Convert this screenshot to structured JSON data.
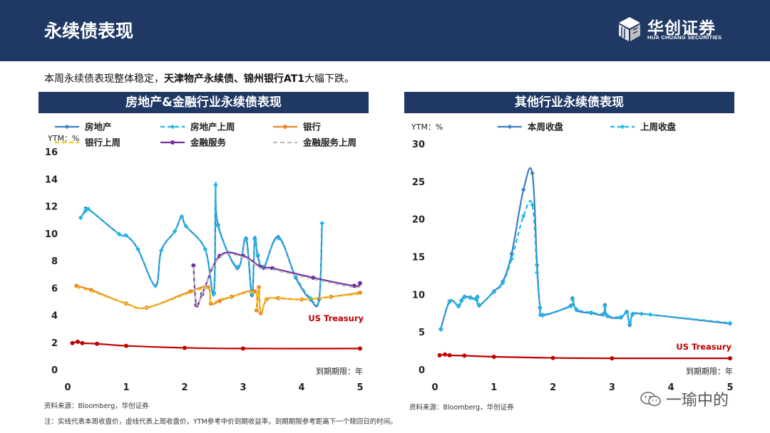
{
  "header": {
    "title": "永续债表现",
    "logo_main": "华创证券",
    "logo_sub": "HUA CHUANG SECURITIES"
  },
  "summary": {
    "prefix": "本周永续债表现整体稳定，",
    "bold": "天津物产永续债、锦州银行AT1",
    "suffix": "大幅下跌。"
  },
  "left_panel": {
    "title": "房地产&金融行业永续债表现",
    "source": "资料来源：Bloomberg，华创证券"
  },
  "right_panel": {
    "title": "其他行业永续债表现",
    "source": "资料来源：Bloomberg，华创证券"
  },
  "note": "注：实线代表本周收盘价，虚线代表上周收盘价，YTM参考中价到期收益率，到期期限参考距离下一个赎回日的时间。",
  "watermark": "一瑜中的",
  "colors": {
    "header": "#1f3864",
    "blue": "#3a7fc1",
    "cyan": "#22b8e6",
    "orange": "#e8892c",
    "yellow": "#f5c518",
    "purple": "#7030a0",
    "gray": "#bfbfbf",
    "red": "#c00000"
  },
  "chart_data": [
    {
      "type": "line",
      "ylabel": "YTM：%",
      "xlabel": "到期期限：年",
      "xlim": [
        0,
        5
      ],
      "ylim": [
        0,
        16
      ],
      "xticks": [
        0,
        1,
        2,
        3,
        4,
        5
      ],
      "yticks": [
        0,
        2,
        4,
        6,
        8,
        10,
        12,
        14,
        16
      ],
      "legend": "top",
      "annotation": "US Treasury",
      "series": [
        {
          "name": "房地产",
          "style": "solid",
          "marker": "diamond",
          "color": "#3a7fc1",
          "x": [
            0.22,
            0.3,
            0.35,
            0.88,
            1.0,
            1.2,
            1.5,
            1.6,
            1.83,
            1.95,
            2.02,
            2.35,
            2.5,
            2.53,
            2.57,
            2.9,
            3.05,
            3.15,
            3.2,
            3.25,
            3.35,
            3.6,
            3.9,
            4.15,
            4.3,
            4.35
          ],
          "y": [
            11.2,
            11.7,
            11.85,
            10.0,
            9.9,
            8.9,
            6.2,
            8.8,
            10.2,
            11.3,
            10.6,
            8.9,
            5.7,
            13.6,
            10.7,
            7.5,
            9.7,
            5.5,
            9.7,
            8.4,
            7.5,
            9.8,
            6.8,
            5.2,
            5.2,
            10.8
          ]
        },
        {
          "name": "房地产上周",
          "style": "dashed",
          "marker": "diamond",
          "color": "#22b8e6",
          "x": [
            0.22,
            0.3,
            0.35,
            0.88,
            1.0,
            1.2,
            1.5,
            1.6,
            1.83,
            1.95,
            2.02,
            2.35,
            2.5,
            2.53,
            2.57,
            2.9,
            3.05,
            3.15,
            3.2,
            3.25,
            3.35,
            3.6,
            3.9,
            4.15,
            4.3,
            4.35
          ],
          "y": [
            11.2,
            11.7,
            11.85,
            10.0,
            9.9,
            8.9,
            6.2,
            8.8,
            10.2,
            11.3,
            10.6,
            8.9,
            5.6,
            13.6,
            10.6,
            7.6,
            9.6,
            5.6,
            9.6,
            8.5,
            7.6,
            9.7,
            6.9,
            5.3,
            5.3,
            10.8
          ]
        },
        {
          "name": "银行",
          "style": "solid",
          "marker": "circle",
          "color": "#e8892c",
          "x": [
            0.15,
            0.4,
            1.0,
            1.35,
            2.1,
            2.4,
            2.45,
            2.6,
            2.8,
            3.2,
            3.23,
            3.27,
            3.3,
            3.4,
            3.6,
            4.0,
            4.5,
            5.0
          ],
          "y": [
            6.2,
            5.9,
            4.9,
            4.6,
            5.8,
            6.1,
            4.9,
            5.1,
            5.4,
            5.8,
            4.4,
            6.1,
            4.2,
            5.2,
            5.3,
            5.2,
            5.4,
            5.7
          ]
        },
        {
          "name": "银行上周",
          "style": "dashed",
          "marker": "none",
          "color": "#f5c518",
          "x": [
            0.15,
            0.4,
            1.0,
            1.35,
            2.1,
            2.4,
            2.45,
            2.6,
            2.8,
            3.2,
            3.23,
            3.27,
            3.3,
            3.4,
            3.6,
            4.0,
            4.5,
            5.0
          ],
          "y": [
            6.1,
            5.8,
            4.9,
            4.6,
            5.7,
            6.0,
            5.0,
            5.2,
            5.4,
            5.7,
            4.5,
            6.0,
            4.3,
            5.2,
            5.3,
            5.2,
            5.4,
            5.6
          ]
        },
        {
          "name": "金融服务",
          "style": "solid",
          "marker": "circle",
          "color": "#7030a0",
          "x": [
            2.15,
            2.2,
            2.3,
            2.6,
            3.0,
            3.3,
            3.5,
            4.2,
            4.9,
            5.0
          ],
          "y": [
            7.7,
            4.8,
            5.6,
            8.4,
            8.4,
            7.6,
            7.5,
            6.8,
            6.2,
            6.4
          ]
        },
        {
          "name": "金融服务上周",
          "style": "dashed",
          "marker": "none",
          "color": "#bfbfbf",
          "x": [
            2.15,
            2.2,
            2.3,
            2.6,
            3.0,
            3.3,
            3.5,
            4.2,
            4.9,
            5.0
          ],
          "y": [
            7.6,
            4.9,
            5.6,
            8.3,
            8.3,
            7.5,
            7.4,
            6.7,
            6.1,
            6.3
          ]
        },
        {
          "name": "US Treasury",
          "style": "solid",
          "marker": "circle",
          "color": "#c00000",
          "x": [
            0.08,
            0.17,
            0.25,
            0.5,
            1.0,
            2.0,
            3.0,
            5.0
          ],
          "y": [
            2.0,
            2.1,
            2.0,
            1.95,
            1.8,
            1.65,
            1.6,
            1.6
          ]
        }
      ]
    },
    {
      "type": "line",
      "ylabel": "YTM：%",
      "xlabel": "到期期限：年",
      "xlim": [
        0,
        5
      ],
      "ylim": [
        0,
        30
      ],
      "xticks": [
        0,
        1,
        2,
        3,
        4,
        5
      ],
      "yticks": [
        0,
        5,
        10,
        15,
        20,
        25,
        30
      ],
      "legend": "top",
      "annotation": "US Treasury",
      "series": [
        {
          "name": "本周收盘",
          "style": "solid",
          "marker": "diamond",
          "color": "#3a7fc1",
          "x": [
            0.1,
            0.25,
            0.4,
            0.45,
            0.5,
            0.6,
            0.7,
            0.72,
            0.75,
            1.0,
            1.15,
            1.3,
            1.5,
            1.65,
            1.73,
            1.78,
            1.82,
            2.3,
            2.33,
            2.4,
            2.65,
            2.85,
            2.88,
            2.92,
            3.15,
            3.25,
            3.3,
            3.35,
            3.5,
            3.65,
            5.0
          ],
          "y": [
            5.5,
            9.2,
            8.5,
            9.3,
            9.8,
            9.7,
            9.5,
            9.8,
            8.6,
            10.5,
            11.8,
            15.5,
            24.0,
            26.2,
            14.0,
            8.3,
            7.3,
            8.6,
            9.6,
            8.0,
            7.6,
            7.4,
            8.7,
            7.2,
            7.0,
            7.8,
            6.0,
            7.5,
            7.5,
            7.4,
            6.2
          ]
        },
        {
          "name": "上周收盘",
          "style": "dashed",
          "marker": "diamond",
          "color": "#22b8e6",
          "x": [
            0.1,
            0.25,
            0.4,
            0.45,
            0.5,
            0.6,
            0.7,
            0.72,
            0.75,
            1.0,
            1.15,
            1.3,
            1.5,
            1.65,
            1.73,
            1.78,
            1.82,
            2.3,
            2.33,
            2.4,
            2.65,
            2.85,
            2.88,
            2.92,
            3.15,
            3.25,
            3.3,
            3.35,
            3.5,
            3.65,
            5.0
          ],
          "y": [
            5.4,
            9.1,
            8.6,
            9.2,
            9.7,
            9.6,
            9.4,
            9.7,
            8.7,
            10.4,
            11.6,
            14.8,
            20.5,
            22.0,
            13.0,
            8.4,
            7.4,
            8.5,
            9.4,
            8.1,
            7.7,
            7.5,
            8.5,
            7.3,
            7.1,
            7.7,
            6.2,
            7.4,
            7.5,
            7.4,
            6.3
          ]
        },
        {
          "name": "US Treasury",
          "style": "solid",
          "marker": "circle",
          "color": "#c00000",
          "x": [
            0.08,
            0.17,
            0.25,
            0.5,
            1.0,
            2.0,
            3.0,
            5.0
          ],
          "y": [
            2.0,
            2.1,
            2.0,
            1.95,
            1.8,
            1.65,
            1.6,
            1.6
          ]
        }
      ]
    }
  ]
}
